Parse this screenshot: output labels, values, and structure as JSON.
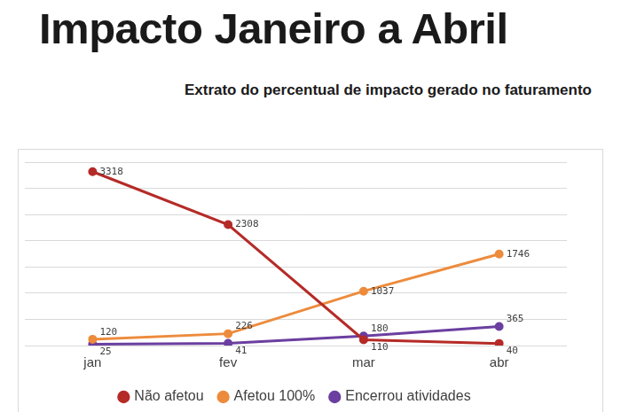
{
  "chart_data": {
    "type": "line",
    "title": "Impacto Janeiro a Abril",
    "subtitle": "Extrato do percentual de impacto gerado no faturamento",
    "categories": [
      "jan",
      "fev",
      "mar",
      "abr"
    ],
    "series": [
      {
        "name": "Não afetou",
        "color": "#b52b27",
        "values": [
          3318,
          2308,
          110,
          40
        ]
      },
      {
        "name": "Afetou 100%",
        "color": "#ed8b3c",
        "values": [
          120,
          226,
          1037,
          1746
        ]
      },
      {
        "name": "Encerrou atividades",
        "color": "#6b3fa0",
        "values": [
          25,
          41,
          180,
          365
        ]
      }
    ],
    "ylim": [
      0,
      3500
    ],
    "yticks": [
      0,
      500,
      1000,
      1500,
      2000,
      2500,
      3000,
      3500
    ],
    "grid": true,
    "legend": "bottom",
    "data_labels": true,
    "tick_labels": "x",
    "marker": "circle"
  }
}
